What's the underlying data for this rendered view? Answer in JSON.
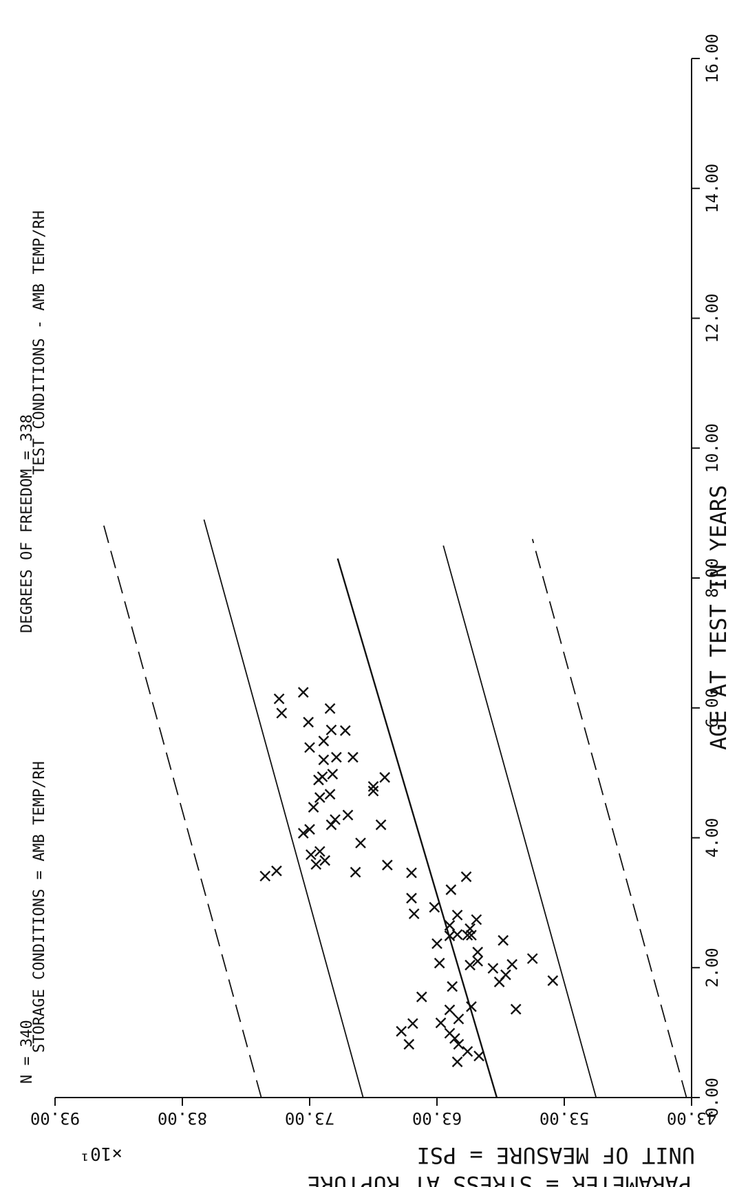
{
  "colors": {
    "ink": "#111111",
    "background": "#ffffff"
  },
  "header": {
    "n_label": "N = 340",
    "dof_label": "DEGREES OF FREEDOM = 338",
    "storage_label": "STORAGE CONDITIONS = AMB TEMP/RH",
    "test_label": "TEST CONDITIONS - AMB TEMP/RH"
  },
  "axes": {
    "ylabel_line1": "PARAMETER = STRESS AT RUPTURE",
    "ylabel_line2": "UNIT OF MEASURE = PSI",
    "multiplier": "×10¹",
    "xlabel": "AGE AT TEST IN YEARS"
  },
  "chart_data": {
    "type": "scatter",
    "orientation": "rotated 90° (y-axis runs along the bottom of the page)",
    "xlabel": "AGE AT TEST IN YEARS",
    "ylabel": "PARAMETER = STRESS AT RUPTURE   UNIT OF MEASURE = PSI",
    "y_multiplier": "×10¹",
    "xlim": [
      0,
      16
    ],
    "ylim": [
      43,
      93
    ],
    "x_ticks": [
      "0.00",
      "2.00",
      "4.00",
      "6.00",
      "8.00",
      "10.00",
      "12.00",
      "14.00",
      "16.00"
    ],
    "y_ticks": [
      "43.00",
      "53.00",
      "63.00",
      "73.00",
      "83.00",
      "93.00"
    ],
    "grid": false,
    "points": [
      {
        "x": 0.64,
        "y": 59.7
      },
      {
        "x": 0.71,
        "y": 60.6
      },
      {
        "x": 0.55,
        "y": 61.4
      },
      {
        "x": 0.82,
        "y": 61.3
      },
      {
        "x": 0.91,
        "y": 61.6
      },
      {
        "x": 0.82,
        "y": 65.2
      },
      {
        "x": 1.02,
        "y": 65.8
      },
      {
        "x": 1.14,
        "y": 64.9
      },
      {
        "x": 1.21,
        "y": 61.3
      },
      {
        "x": 1.4,
        "y": 60.3
      },
      {
        "x": 1.36,
        "y": 56.8
      },
      {
        "x": 1.71,
        "y": 61.8
      },
      {
        "x": 1.78,
        "y": 58.1
      },
      {
        "x": 1.8,
        "y": 53.9
      },
      {
        "x": 1.89,
        "y": 57.6
      },
      {
        "x": 1.99,
        "y": 58.6
      },
      {
        "x": 2.04,
        "y": 60.4
      },
      {
        "x": 2.1,
        "y": 59.8
      },
      {
        "x": 2.05,
        "y": 57.1
      },
      {
        "x": 2.14,
        "y": 55.5
      },
      {
        "x": 2.24,
        "y": 59.8
      },
      {
        "x": 2.37,
        "y": 63.0
      },
      {
        "x": 2.42,
        "y": 57.8
      },
      {
        "x": 2.5,
        "y": 60.6
      },
      {
        "x": 2.51,
        "y": 61.4
      },
      {
        "x": 2.49,
        "y": 62.0
      },
      {
        "x": 2.5,
        "y": 60.3
      },
      {
        "x": 2.6,
        "y": 60.4
      },
      {
        "x": 2.65,
        "y": 62.0
      },
      {
        "x": 2.74,
        "y": 59.9
      },
      {
        "x": 2.83,
        "y": 64.8
      },
      {
        "x": 3.2,
        "y": 61.9
      },
      {
        "x": 3.41,
        "y": 76.5
      },
      {
        "x": 3.49,
        "y": 75.6
      },
      {
        "x": 3.46,
        "y": 65.0
      },
      {
        "x": 3.47,
        "y": 69.4
      },
      {
        "x": 3.65,
        "y": 71.8
      },
      {
        "x": 3.59,
        "y": 72.5
      },
      {
        "x": 3.74,
        "y": 72.9
      },
      {
        "x": 3.79,
        "y": 72.2
      },
      {
        "x": 3.92,
        "y": 69.0
      },
      {
        "x": 4.07,
        "y": 73.5
      },
      {
        "x": 4.13,
        "y": 73.0
      },
      {
        "x": 4.35,
        "y": 70.0
      },
      {
        "x": 4.2,
        "y": 71.3
      },
      {
        "x": 4.28,
        "y": 71.0
      },
      {
        "x": 4.47,
        "y": 72.7
      },
      {
        "x": 4.62,
        "y": 72.2
      },
      {
        "x": 4.67,
        "y": 71.4
      },
      {
        "x": 4.72,
        "y": 68.0
      },
      {
        "x": 4.79,
        "y": 68.0
      },
      {
        "x": 4.89,
        "y": 72.3
      },
      {
        "x": 4.98,
        "y": 71.2
      },
      {
        "x": 5.2,
        "y": 71.9
      },
      {
        "x": 5.24,
        "y": 70.9
      },
      {
        "x": 4.94,
        "y": 72.0
      },
      {
        "x": 5.39,
        "y": 73.0
      },
      {
        "x": 5.49,
        "y": 71.9
      },
      {
        "x": 5.66,
        "y": 71.3
      },
      {
        "x": 5.78,
        "y": 73.1
      },
      {
        "x": 5.92,
        "y": 75.2
      },
      {
        "x": 6.14,
        "y": 75.4
      },
      {
        "x": 6.24,
        "y": 73.5
      },
      {
        "x": 5.99,
        "y": 71.4
      },
      {
        "x": 5.65,
        "y": 70.2
      },
      {
        "x": 5.24,
        "y": 69.6
      },
      {
        "x": 4.93,
        "y": 67.1
      },
      {
        "x": 4.2,
        "y": 67.4
      },
      {
        "x": 3.58,
        "y": 66.9
      },
      {
        "x": 3.07,
        "y": 65.0
      },
      {
        "x": 3.4,
        "y": 60.7
      },
      {
        "x": 2.81,
        "y": 61.4
      },
      {
        "x": 2.93,
        "y": 63.2
      },
      {
        "x": 1.55,
        "y": 64.2
      },
      {
        "x": 2.07,
        "y": 62.8
      },
      {
        "x": 1.35,
        "y": 62.0
      },
      {
        "x": 0.99,
        "y": 62.0
      },
      {
        "x": 1.15,
        "y": 62.7
      }
    ],
    "lines": [
      {
        "name": "regression",
        "style": "solid",
        "x": [
          0,
          8.3
        ],
        "y": [
          58.3,
          70.8
        ],
        "extrapolated_to": [
          8.3,
          8.3
        ]
      },
      {
        "name": "upper-band-inner",
        "style": "solid",
        "x": [
          0,
          8.9
        ],
        "y": [
          68.8,
          81.3
        ]
      },
      {
        "name": "upper-band-outer",
        "style": "dashed",
        "x": [
          0,
          8.9
        ],
        "y": [
          76.8,
          89.3
        ]
      },
      {
        "name": "lower-band-inner",
        "style": "solid",
        "x": [
          0,
          8.5
        ],
        "y": [
          50.5,
          62.5
        ]
      },
      {
        "name": "lower-band-outer",
        "style": "dashed",
        "x": [
          0,
          8.6
        ],
        "y": [
          43.4,
          55.5
        ]
      }
    ]
  }
}
